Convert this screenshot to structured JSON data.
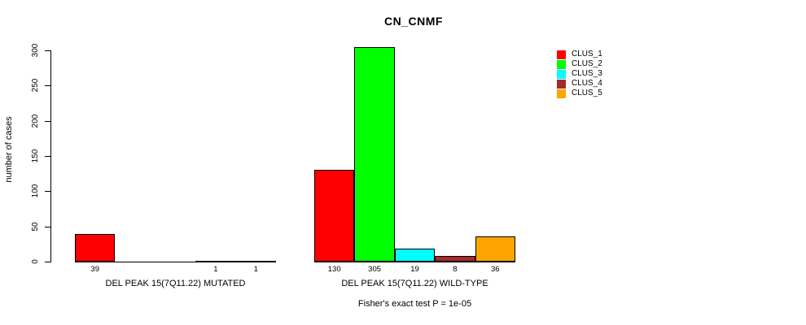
{
  "header": {
    "title": "CN_CNMF"
  },
  "chart_data": {
    "type": "bar",
    "title": "CN_CNMF",
    "xlabel": "",
    "ylabel": "number of cases",
    "ylim": [
      0,
      300
    ],
    "yticks": [
      0,
      50,
      100,
      150,
      200,
      250,
      300
    ],
    "grid": false,
    "legend_position": "top-right",
    "categories": [
      "DEL PEAK 15(7Q11.22) MUTATED",
      "DEL PEAK 15(7Q11.22) WILD-TYPE"
    ],
    "series": [
      {
        "name": "CLUS_1",
        "color": "#FF0000",
        "values": [
          39,
          130
        ]
      },
      {
        "name": "CLUS_2",
        "color": "#00FF00",
        "values": [
          0,
          305
        ]
      },
      {
        "name": "CLUS_3",
        "color": "#00FFFF",
        "values": [
          0,
          19
        ]
      },
      {
        "name": "CLUS_4",
        "color": "#A52A2A",
        "values": [
          1,
          8
        ]
      },
      {
        "name": "CLUS_5",
        "color": "#FFA500",
        "values": [
          1,
          36
        ]
      }
    ],
    "annotation": "Fisher's exact test P = 1e-05"
  }
}
